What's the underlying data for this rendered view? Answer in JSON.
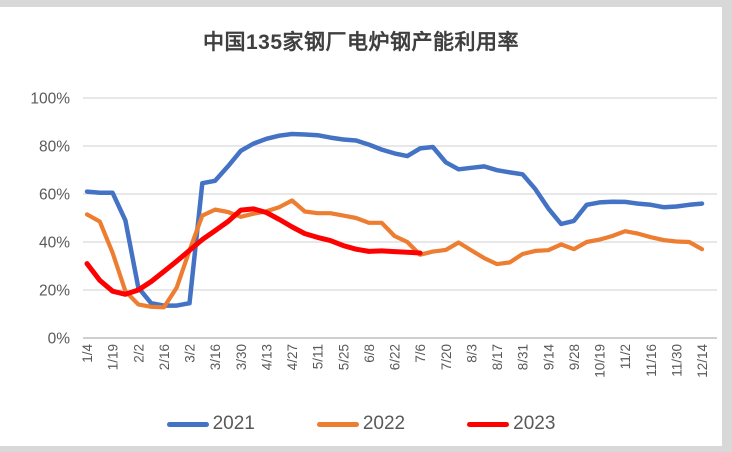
{
  "window": {
    "frame_color": "#d8d8d8",
    "canvas_color": "#ffffff"
  },
  "chart_data": {
    "type": "line",
    "title": "中国135家钢厂电炉钢产能利用率",
    "xlabel": "",
    "ylabel": "",
    "grid": true,
    "legend_position": "bottom",
    "colors": {
      "gridline": "#d9d9d9",
      "axis_line": "#bfbfbf",
      "tick_label": "#595959",
      "title_text": "#3f3f3f"
    },
    "y_axis": {
      "ylim": [
        0,
        100
      ],
      "tick_values": [
        0,
        20,
        40,
        60,
        80,
        100
      ],
      "tick_labels": [
        "0%",
        "20%",
        "40%",
        "60%",
        "80%",
        "100%"
      ]
    },
    "x_axis": {
      "label_step": 2,
      "label_rotation": 90,
      "shown_labels": [
        "1/4",
        "1/19",
        "2/2",
        "2/16",
        "3/2",
        "3/16",
        "3/30",
        "4/13",
        "4/27",
        "5/11",
        "5/25",
        "6/8",
        "6/22",
        "7/6",
        "7/20",
        "8/3",
        "8/17",
        "8/31",
        "9/14",
        "9/28",
        "10/19",
        "11/2",
        "11/16",
        "11/30",
        "12/14"
      ]
    },
    "categories": [
      "1/4",
      "1/11",
      "1/19",
      "1/26",
      "2/2",
      "2/9",
      "2/16",
      "2/23",
      "3/2",
      "3/9",
      "3/16",
      "3/23",
      "3/30",
      "4/6",
      "4/13",
      "4/20",
      "4/27",
      "5/4",
      "5/11",
      "5/18",
      "5/25",
      "6/1",
      "6/8",
      "6/15",
      "6/22",
      "6/29",
      "7/6",
      "7/13",
      "7/20",
      "7/27",
      "8/3",
      "8/10",
      "8/17",
      "8/24",
      "8/31",
      "9/7",
      "9/14",
      "9/21",
      "9/28",
      "10/12",
      "10/19",
      "10/26",
      "11/2",
      "11/9",
      "11/16",
      "11/23",
      "11/30",
      "12/7",
      "12/14"
    ],
    "series": [
      {
        "name": "2021",
        "color": "#4472C4",
        "stroke_width": 4.5,
        "values": [
          61,
          60.5,
          60.5,
          49,
          21,
          14.5,
          13.5,
          13.5,
          14.5,
          64.5,
          65.5,
          71.5,
          78,
          81,
          83,
          84.3,
          85,
          84.8,
          84.5,
          83.5,
          82.7,
          82.3,
          80.6,
          78.5,
          76.9,
          75.8,
          79,
          79.6,
          73.2,
          70.3,
          70.9,
          71.5,
          69.9,
          69,
          68.2,
          62,
          54,
          47.5,
          48.8,
          55.5,
          56.5,
          56.8,
          56.7,
          56,
          55.5,
          54.5,
          54.8,
          55.5,
          56
        ]
      },
      {
        "name": "2022",
        "color": "#ED7D31",
        "stroke_width": 4.2,
        "values": [
          51.5,
          48.5,
          35.5,
          19.5,
          14,
          13,
          12.8,
          21,
          36.5,
          51,
          53.5,
          52.5,
          50.5,
          51.8,
          52.8,
          54.5,
          57.3,
          52.7,
          52,
          52,
          51,
          50,
          48,
          48,
          42.5,
          40,
          34.7,
          36,
          36.7,
          39.8,
          36.5,
          33.3,
          30.8,
          31.5,
          35,
          36.3,
          36.6,
          39,
          37,
          40,
          41,
          42.5,
          44.5,
          43.5,
          42,
          40.8,
          40.2,
          40,
          37
        ]
      },
      {
        "name": "2023",
        "color": "#FF0000",
        "stroke_width": 5,
        "values": [
          31,
          24,
          19.5,
          18.2,
          20,
          23.5,
          27.7,
          32,
          36.5,
          41,
          44.7,
          48.5,
          53.3,
          53.8,
          52.3,
          49.4,
          46.3,
          43.5,
          41.9,
          40.6,
          38.5,
          37,
          36.1,
          36.3,
          36,
          35.7,
          35.4
        ]
      }
    ]
  }
}
